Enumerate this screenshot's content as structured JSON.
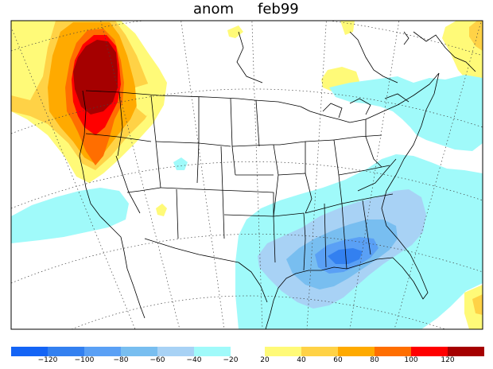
{
  "title": {
    "variable": "anom",
    "period": "feb99"
  },
  "map_data": {
    "type": "filled-contour-map",
    "region": "North America / contiguous United States",
    "projection": "polar-stereographic",
    "graticule": "dotted",
    "negative_colors": [
      "#1464f5",
      "#3380f0",
      "#5aa0f5",
      "#78bef0",
      "#a8d2f5",
      "#a0fafa"
    ],
    "positive_colors": [
      "#fffa78",
      "#ffd246",
      "#ffaa00",
      "#ff6e00",
      "#ff0000",
      "#a50000"
    ],
    "negative_labels": [
      "−120",
      "−100",
      "−80",
      "−60",
      "−40",
      "−20"
    ],
    "positive_labels": [
      "20",
      "40",
      "60",
      "80",
      "100",
      "120"
    ]
  }
}
